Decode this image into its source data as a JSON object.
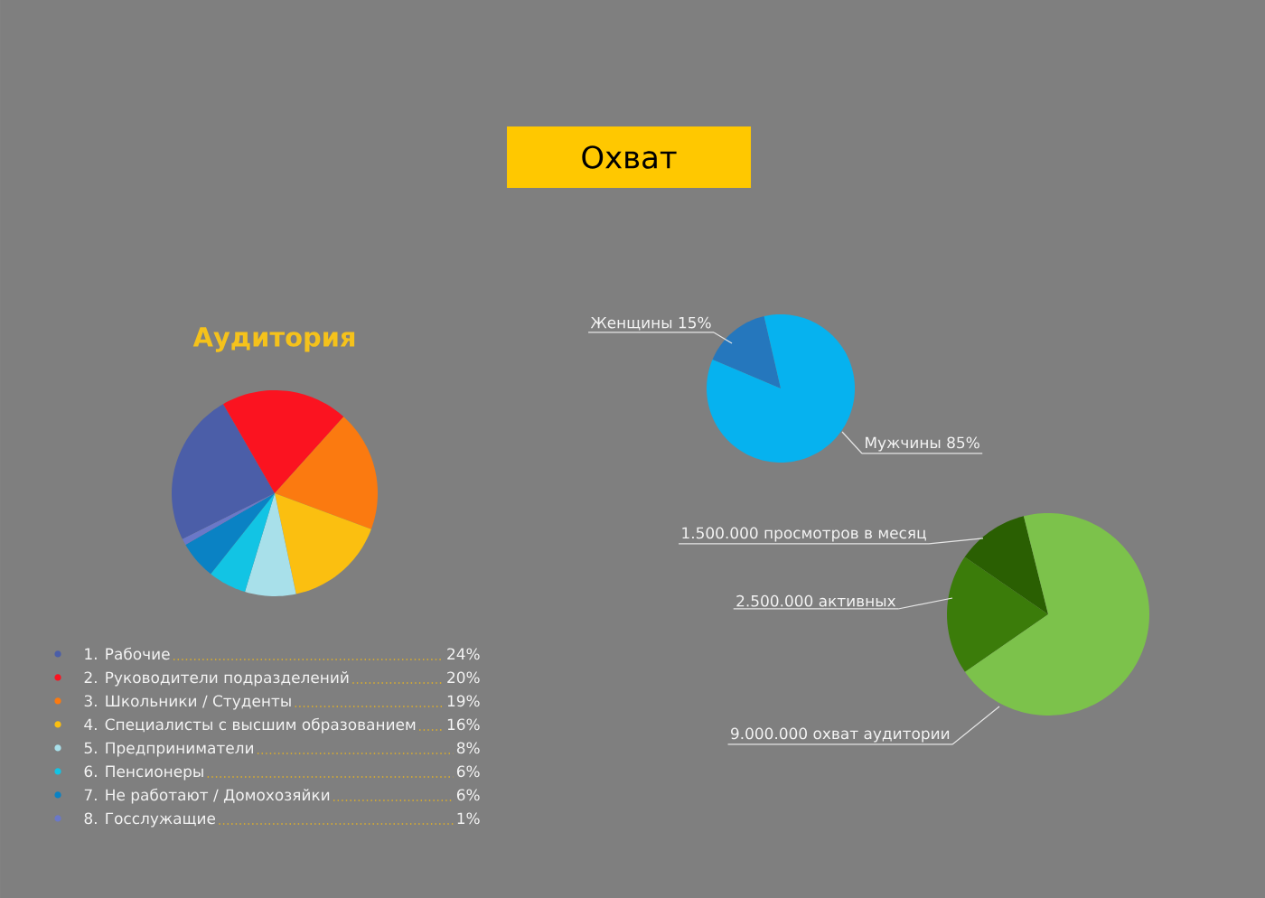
{
  "chart_data": [
    {
      "type": "pie",
      "title": "Аудитория",
      "categories": [
        "1. Рабочие",
        "2. Руководители подразделений",
        "3. Школьники / Студенты",
        "4. Специалисты с высшим образованием",
        "5. Предприниматели",
        "6. Пенсионеры",
        "7. Не работают / Домохозяйки",
        "8. Госслужащие"
      ],
      "values": [
        24,
        20,
        19,
        16,
        8,
        6,
        6,
        1
      ],
      "value_labels": [
        "24%",
        "20%",
        "19%",
        "16%",
        "8%",
        "6%",
        "6%",
        "1%"
      ],
      "colors": [
        "#4b5ea8",
        "#fb1320",
        "#fb7a10",
        "#fbbf10",
        "#a8e0ea",
        "#12c4e4",
        "#0a82c4",
        "#6a78c8"
      ],
      "legend": "bottom"
    },
    {
      "type": "pie",
      "title": "Охват",
      "categories": [
        "Женщины",
        "Мужчины"
      ],
      "values": [
        15,
        85
      ],
      "value_labels": [
        "15%",
        "85%"
      ],
      "colors": [
        "#2577bd",
        "#06b2ef"
      ]
    },
    {
      "type": "pie",
      "categories": [
        "просмотров в месяц",
        "активных",
        "охват аудитории"
      ],
      "values": [
        1500000,
        2500000,
        9000000
      ],
      "value_labels": [
        "1.500.000",
        "2.500.000",
        "9.000.000"
      ],
      "colors": [
        "#2a5f02",
        "#3b7c0a",
        "#7cc24b"
      ]
    }
  ]
}
